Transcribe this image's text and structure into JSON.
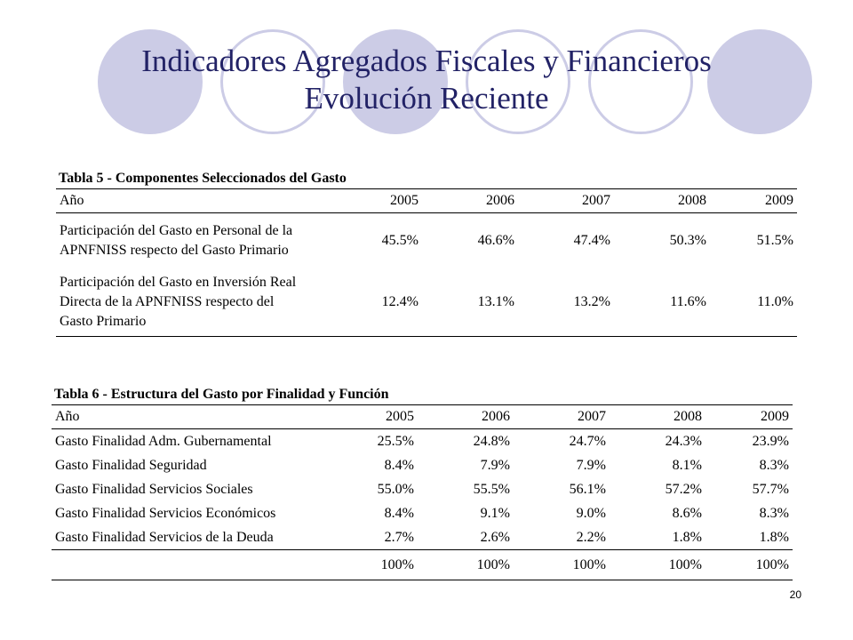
{
  "slide": {
    "title_line1": "Indicadores Agregados Fiscales y Financieros",
    "title_line2": "Evolución Reciente",
    "page_number": "20"
  },
  "table5": {
    "caption": "Tabla 5 -  Componentes Seleccionados del Gasto",
    "year_label": "Año",
    "years": [
      "2005",
      "2006",
      "2007",
      "2008",
      "2009"
    ],
    "rows": [
      {
        "label_lines": [
          "Participación del Gasto en Personal de la",
          "APNFNISS respecto del Gasto Primario"
        ],
        "values": [
          "45.5%",
          "46.6%",
          "47.4%",
          "50.3%",
          "51.5%"
        ]
      },
      {
        "label_lines": [
          "Participación del Gasto en Inversión Real",
          "Directa de la APNFNISS respecto del",
          "Gasto Primario"
        ],
        "values": [
          "12.4%",
          "13.1%",
          "13.2%",
          "11.6%",
          "11.0%"
        ]
      }
    ]
  },
  "table6": {
    "caption": "Tabla 6 - Estructura del Gasto por Finalidad y Función",
    "year_label": "Año",
    "years": [
      "2005",
      "2006",
      "2007",
      "2008",
      "2009"
    ],
    "rows": [
      {
        "label": "Gasto Finalidad Adm. Gubernamental",
        "values": [
          "25.5%",
          "24.8%",
          "24.7%",
          "24.3%",
          "23.9%"
        ]
      },
      {
        "label": "Gasto Finalidad Seguridad",
        "values": [
          "8.4%",
          "7.9%",
          "7.9%",
          "8.1%",
          "8.3%"
        ]
      },
      {
        "label": "Gasto Finalidad Servicios Sociales",
        "values": [
          "55.0%",
          "55.5%",
          "56.1%",
          "57.2%",
          "57.7%"
        ]
      },
      {
        "label": "Gasto Finalidad Servicios  Económicos",
        "values": [
          "8.4%",
          "9.1%",
          "9.0%",
          "8.6%",
          "8.3%"
        ]
      },
      {
        "label": "Gasto Finalidad Servicios de la  Deuda",
        "values": [
          "2.7%",
          "2.6%",
          "2.2%",
          "1.8%",
          "1.8%"
        ]
      }
    ],
    "totals": [
      "100%",
      "100%",
      "100%",
      "100%",
      "100%"
    ]
  },
  "colors": {
    "title": "#222266",
    "circle_fill": "#cccce6",
    "circle_ring": "#cccce6"
  }
}
